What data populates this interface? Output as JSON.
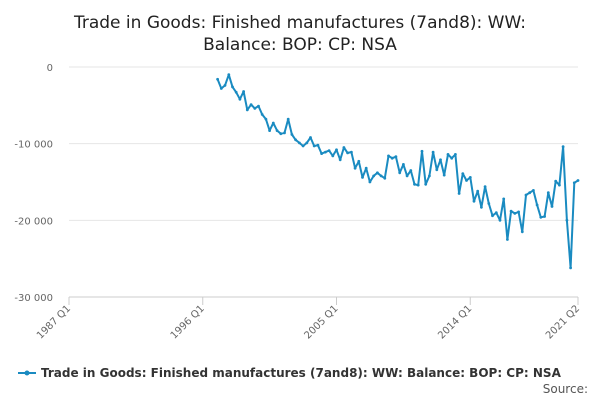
{
  "chart_data": {
    "type": "line",
    "title_lines": [
      "Trade in Goods: Finished manufactures (7and8): WW:",
      "Balance: BOP: CP: NSA"
    ],
    "y_ticks": [
      {
        "value": 0,
        "label": "0"
      },
      {
        "value": -10000,
        "label": "-10 000"
      },
      {
        "value": -20000,
        "label": "-20 000"
      },
      {
        "value": -30000,
        "label": "-30 000"
      }
    ],
    "x_ticks": [
      {
        "value": 1987.0,
        "label": "1987 Q1"
      },
      {
        "value": 1996.0,
        "label": "1996 Q1"
      },
      {
        "value": 2005.0,
        "label": "2005 Q1"
      },
      {
        "value": 2014.0,
        "label": "2014 Q1"
      },
      {
        "value": 2021.25,
        "label": "2021 Q2"
      }
    ],
    "xlim": [
      1987.0,
      2021.25
    ],
    "ylim": [
      -30000,
      0
    ],
    "grid": true,
    "series": [
      {
        "name": "Trade in Goods: Finished manufactures (7and8): WW: Balance: BOP: CP: NSA",
        "color": "#1a8bc1",
        "points": [
          [
            1997.0,
            -1600
          ],
          [
            1997.25,
            -2800
          ],
          [
            1997.5,
            -2400
          ],
          [
            1997.75,
            -1000
          ],
          [
            1998.0,
            -2600
          ],
          [
            1998.25,
            -3300
          ],
          [
            1998.5,
            -4200
          ],
          [
            1998.75,
            -3200
          ],
          [
            1999.0,
            -5600
          ],
          [
            1999.25,
            -4900
          ],
          [
            1999.5,
            -5400
          ],
          [
            1999.75,
            -5100
          ],
          [
            2000.0,
            -6200
          ],
          [
            2000.25,
            -6800
          ],
          [
            2000.5,
            -8300
          ],
          [
            2000.75,
            -7300
          ],
          [
            2001.0,
            -8300
          ],
          [
            2001.25,
            -8700
          ],
          [
            2001.5,
            -8600
          ],
          [
            2001.75,
            -6800
          ],
          [
            2002.0,
            -8800
          ],
          [
            2002.25,
            -9500
          ],
          [
            2002.5,
            -9900
          ],
          [
            2002.75,
            -10300
          ],
          [
            2003.0,
            -9900
          ],
          [
            2003.25,
            -9200
          ],
          [
            2003.5,
            -10300
          ],
          [
            2003.75,
            -10200
          ],
          [
            2004.0,
            -11300
          ],
          [
            2004.25,
            -11100
          ],
          [
            2004.5,
            -10900
          ],
          [
            2004.75,
            -11600
          ],
          [
            2005.0,
            -10800
          ],
          [
            2005.25,
            -12100
          ],
          [
            2005.5,
            -10500
          ],
          [
            2005.75,
            -11200
          ],
          [
            2006.0,
            -11100
          ],
          [
            2006.25,
            -13200
          ],
          [
            2006.5,
            -12300
          ],
          [
            2006.75,
            -14400
          ],
          [
            2007.0,
            -13200
          ],
          [
            2007.25,
            -15000
          ],
          [
            2007.5,
            -14200
          ],
          [
            2007.75,
            -13800
          ],
          [
            2008.0,
            -14200
          ],
          [
            2008.25,
            -14500
          ],
          [
            2008.5,
            -11600
          ],
          [
            2008.75,
            -11900
          ],
          [
            2009.0,
            -11700
          ],
          [
            2009.25,
            -13800
          ],
          [
            2009.5,
            -12700
          ],
          [
            2009.75,
            -14200
          ],
          [
            2010.0,
            -13500
          ],
          [
            2010.25,
            -15300
          ],
          [
            2010.5,
            -15400
          ],
          [
            2010.75,
            -11000
          ],
          [
            2011.0,
            -15300
          ],
          [
            2011.25,
            -14200
          ],
          [
            2011.5,
            -11100
          ],
          [
            2011.75,
            -13400
          ],
          [
            2012.0,
            -12100
          ],
          [
            2012.25,
            -14100
          ],
          [
            2012.5,
            -11400
          ],
          [
            2012.75,
            -11900
          ],
          [
            2013.0,
            -11400
          ],
          [
            2013.25,
            -16500
          ],
          [
            2013.5,
            -13900
          ],
          [
            2013.75,
            -14800
          ],
          [
            2014.0,
            -14400
          ],
          [
            2014.25,
            -17500
          ],
          [
            2014.5,
            -16200
          ],
          [
            2014.75,
            -18300
          ],
          [
            2015.0,
            -15600
          ],
          [
            2015.25,
            -17800
          ],
          [
            2015.5,
            -19400
          ],
          [
            2015.75,
            -19000
          ],
          [
            2016.0,
            -20000
          ],
          [
            2016.25,
            -17200
          ],
          [
            2016.5,
            -22500
          ],
          [
            2016.75,
            -18800
          ],
          [
            2017.0,
            -19100
          ],
          [
            2017.25,
            -18900
          ],
          [
            2017.5,
            -21500
          ],
          [
            2017.75,
            -16700
          ],
          [
            2018.0,
            -16400
          ],
          [
            2018.25,
            -16100
          ],
          [
            2018.5,
            -18000
          ],
          [
            2018.75,
            -19600
          ],
          [
            2019.0,
            -19500
          ],
          [
            2019.25,
            -16400
          ],
          [
            2019.5,
            -18200
          ],
          [
            2019.75,
            -14900
          ],
          [
            2020.0,
            -15400
          ],
          [
            2020.25,
            -10400
          ],
          [
            2020.5,
            -20000
          ],
          [
            2020.75,
            -26200
          ],
          [
            2021.0,
            -15100
          ],
          [
            2021.25,
            -14800
          ]
        ]
      }
    ],
    "legend_placement": "bottom",
    "source_label": "Source:"
  }
}
